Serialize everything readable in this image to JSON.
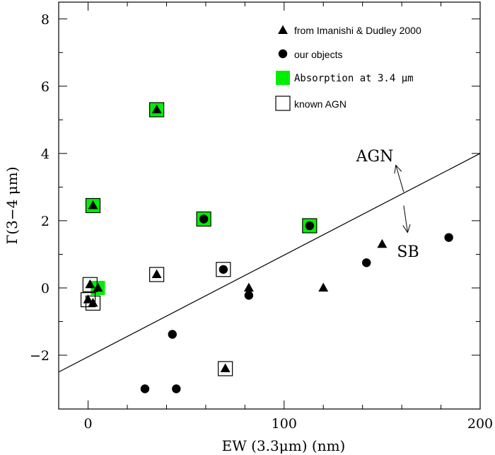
{
  "chart_data": {
    "type": "scatter",
    "title": "",
    "xlabel": "EW (3.3μm) (nm)",
    "ylabel": "Γ(3−4 μm)",
    "xlim": [
      -15,
      200
    ],
    "ylim": [
      -3.6,
      8.5
    ],
    "xticks_major": [
      0,
      100,
      200
    ],
    "xticks_minor": [
      0,
      20,
      40,
      60,
      80,
      100,
      120,
      140,
      160,
      180,
      200
    ],
    "yticks_major": [
      -2,
      0,
      2,
      4,
      6,
      8
    ],
    "yticks_minor": [
      -2,
      -1,
      0,
      1,
      2,
      3,
      4,
      5,
      6,
      7,
      8
    ],
    "ytick_labels": [
      "−2",
      "0",
      "2",
      "4",
      "6",
      "8"
    ],
    "xtick_labels": [
      "0",
      "100",
      "200"
    ],
    "grid": false,
    "legend_position": "top-right",
    "legend": [
      {
        "label": "from Imanishi & Dudley 2000",
        "marker": "triangle"
      },
      {
        "label": "our objects",
        "marker": "circle"
      },
      {
        "label": "Absorption at 3.4 μm",
        "marker": "filled-square"
      },
      {
        "label": "known AGN",
        "marker": "open-square"
      }
    ],
    "series": [
      {
        "name": "from Imanishi & Dudley 2000",
        "marker": "triangle",
        "points": [
          {
            "x": 35,
            "y": 5.3
          },
          {
            "x": 2.5,
            "y": 2.45
          },
          {
            "x": 35,
            "y": 0.4
          },
          {
            "x": 1,
            "y": 0.1
          },
          {
            "x": 5,
            "y": 0.0
          },
          {
            "x": 0,
            "y": -0.35
          },
          {
            "x": 2.5,
            "y": -0.45
          },
          {
            "x": 70,
            "y": -2.4
          },
          {
            "x": 82,
            "y": 0.0
          },
          {
            "x": 120,
            "y": 0.0
          },
          {
            "x": 150,
            "y": 1.3
          }
        ]
      },
      {
        "name": "our objects",
        "marker": "circle",
        "points": [
          {
            "x": 59,
            "y": 2.05
          },
          {
            "x": 113,
            "y": 1.85
          },
          {
            "x": 69,
            "y": 0.55
          },
          {
            "x": 82,
            "y": -0.22
          },
          {
            "x": 43,
            "y": -1.38
          },
          {
            "x": 29,
            "y": -3.0
          },
          {
            "x": 45,
            "y": -3.0
          },
          {
            "x": 142,
            "y": 0.75
          },
          {
            "x": 184,
            "y": 1.5
          }
        ]
      }
    ],
    "absorption_3_4um": [
      {
        "x": 35,
        "y": 5.3
      },
      {
        "x": 2.5,
        "y": 2.45
      },
      {
        "x": 59,
        "y": 2.05
      },
      {
        "x": 113,
        "y": 1.85
      },
      {
        "x": 5,
        "y": 0.0
      }
    ],
    "known_agn": [
      {
        "x": 35,
        "y": 5.3
      },
      {
        "x": 2.5,
        "y": 2.45
      },
      {
        "x": 59,
        "y": 2.05
      },
      {
        "x": 113,
        "y": 1.85
      },
      {
        "x": 35,
        "y": 0.4
      },
      {
        "x": 69,
        "y": 0.55
      },
      {
        "x": 1,
        "y": 0.1
      },
      {
        "x": 0,
        "y": -0.35
      },
      {
        "x": 2.5,
        "y": -0.45
      },
      {
        "x": 70,
        "y": -2.4
      }
    ],
    "divider_line": {
      "x": [
        -15,
        200
      ],
      "y": [
        -2.5,
        4.0
      ]
    },
    "region_labels": {
      "upper": "AGN",
      "lower": "SB"
    },
    "region_arrows": [
      {
        "from": [
          161,
          2.85
        ],
        "to": [
          157,
          3.65
        ]
      },
      {
        "from": [
          161,
          2.45
        ],
        "to": [
          163,
          1.65
        ]
      }
    ],
    "colors": {
      "absorption": "#00ee00",
      "marker": "#000000"
    }
  }
}
